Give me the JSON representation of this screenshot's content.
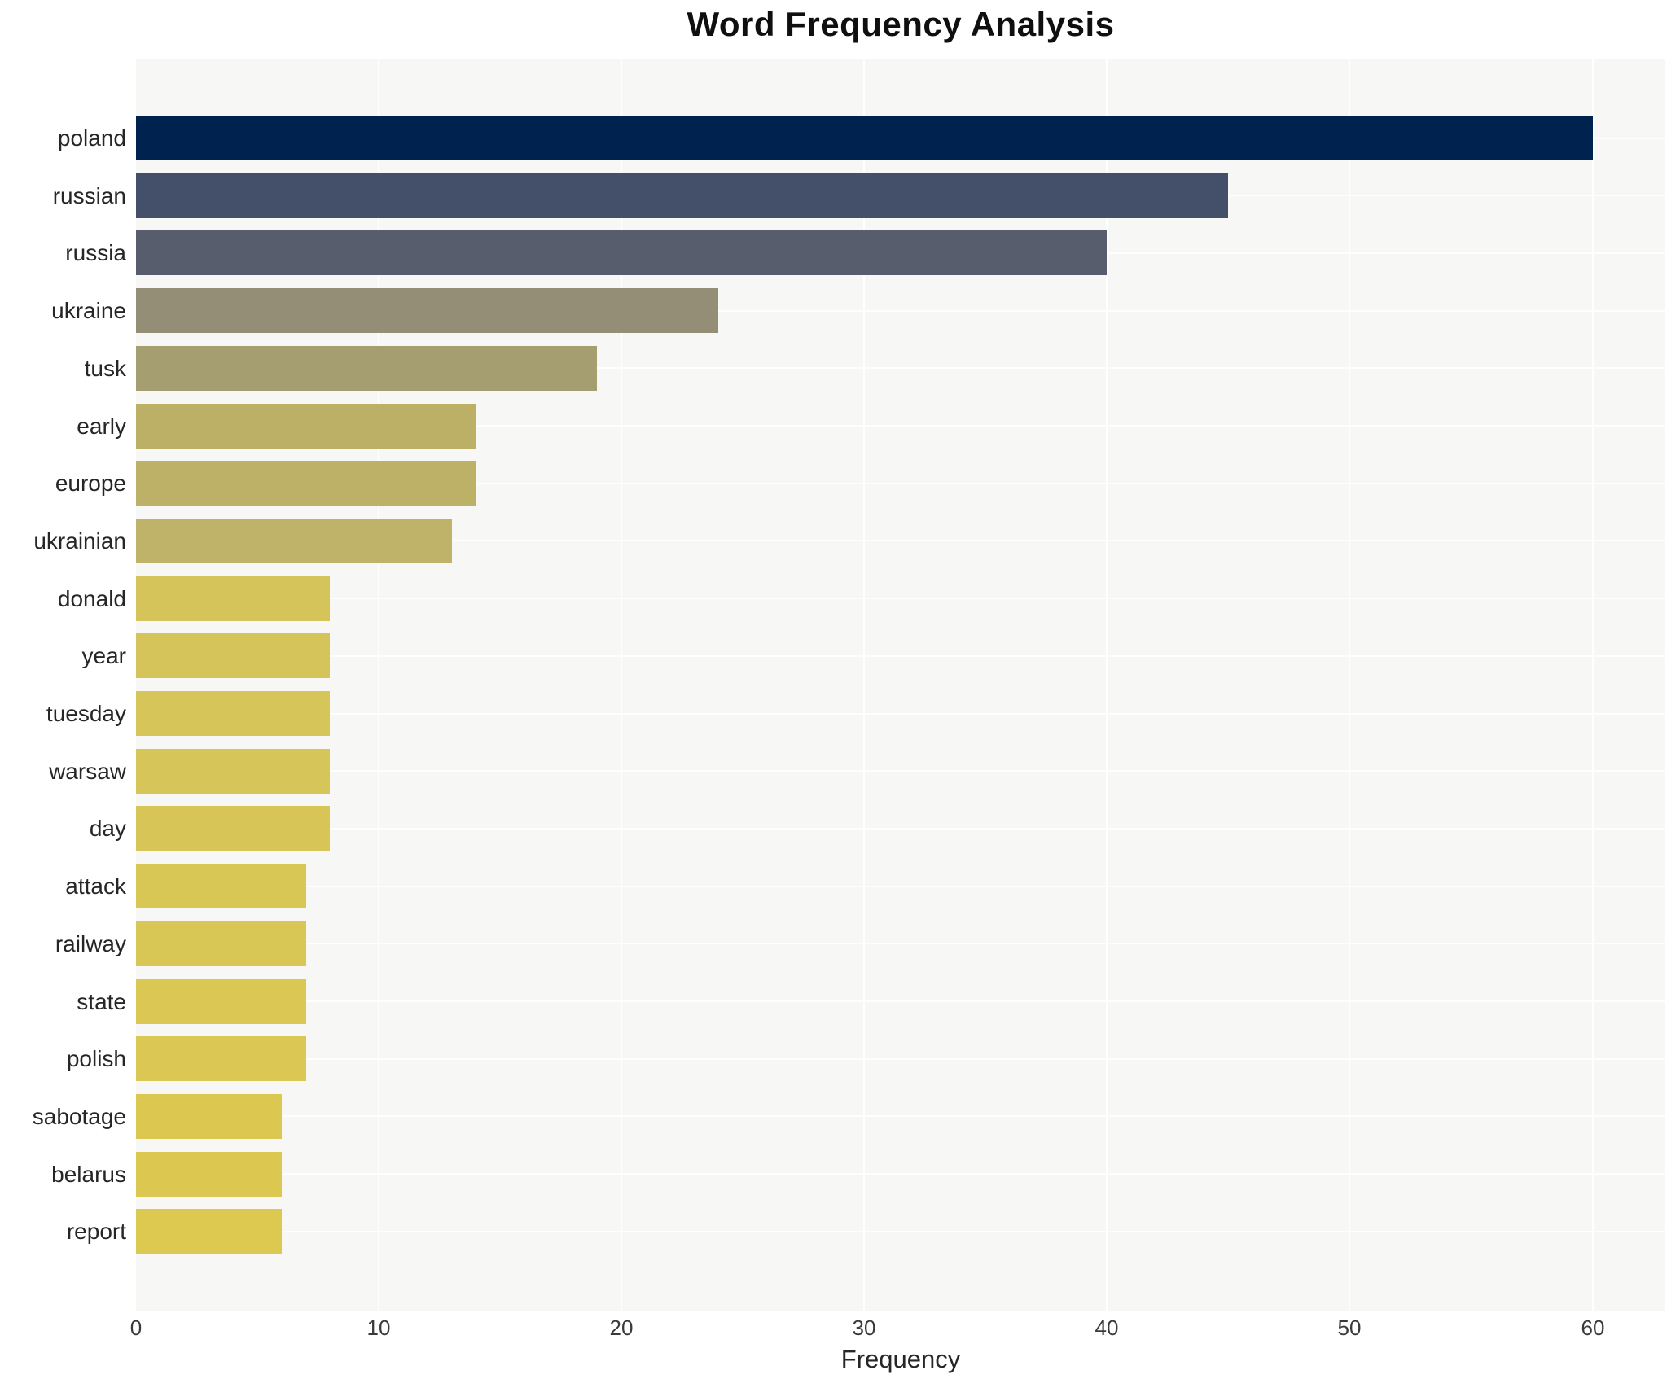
{
  "chart_data": {
    "type": "bar",
    "orientation": "horizontal",
    "title": "Word Frequency Analysis",
    "xlabel": "Frequency",
    "ylabel": "",
    "categories": [
      "poland",
      "russian",
      "russia",
      "ukraine",
      "tusk",
      "early",
      "europe",
      "ukrainian",
      "donald",
      "year",
      "tuesday",
      "warsaw",
      "day",
      "attack",
      "railway",
      "state",
      "polish",
      "sabotage",
      "belarus",
      "report"
    ],
    "values": [
      60,
      45,
      40,
      24,
      19,
      14,
      14,
      13,
      8,
      8,
      8,
      8,
      8,
      7,
      7,
      7,
      7,
      6,
      6,
      6
    ],
    "bar_colors": [
      "#00224e",
      "#44506a",
      "#575d6d",
      "#948e76",
      "#a49e71",
      "#bcb066",
      "#bdb167",
      "#bfb269",
      "#d5c459",
      "#d5c459",
      "#d6c558",
      "#d6c558",
      "#d7c657",
      "#d9c755",
      "#d9c755",
      "#dac754",
      "#dac754",
      "#dcc851",
      "#dcc851",
      "#ddc94f"
    ],
    "xlim": [
      0,
      63
    ],
    "xticks": [
      0,
      10,
      20,
      30,
      40,
      50,
      60
    ],
    "grid": true,
    "legend_position": "none",
    "plot_background": "#f7f7f5",
    "grid_color": "#ffffff",
    "figure_background": "#ffffff"
  }
}
